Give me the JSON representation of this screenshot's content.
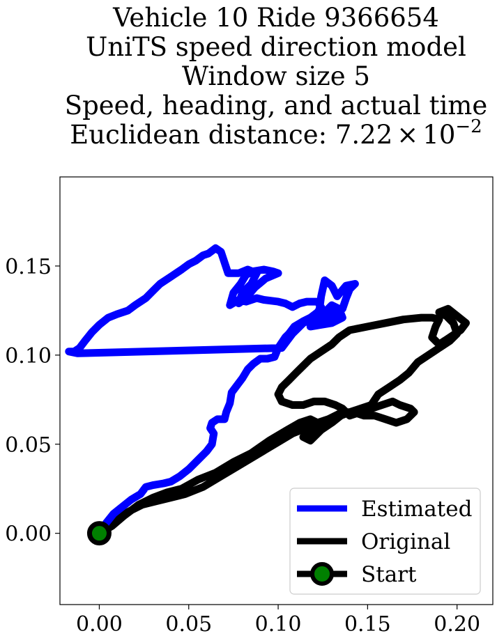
{
  "chart_data": {
    "type": "line",
    "title_lines": [
      "Vehicle 10 Ride 9366654",
      "UniTS speed direction model",
      "Window size 5",
      "Speed, heading, and actual time"
    ],
    "title_last_line": {
      "prefix": "Euclidean distance: ",
      "mantissa": "7.22",
      "times": "×",
      "base": "10",
      "exponent": "−2"
    },
    "xlim": [
      -0.022,
      0.22
    ],
    "ylim": [
      -0.04,
      0.2
    ],
    "xticks": [
      0.0,
      0.05,
      0.1,
      0.15,
      0.2
    ],
    "xtick_labels": [
      "0.00",
      "0.05",
      "0.10",
      "0.15",
      "0.20"
    ],
    "yticks": [
      0.0,
      0.05,
      0.1,
      0.15
    ],
    "ytick_labels": [
      "0.00",
      "0.05",
      "0.10",
      "0.15"
    ],
    "grid": false,
    "legend_position": "lower-right",
    "series": [
      {
        "name": "Estimated",
        "color": "#0000ff",
        "points": [
          [
            0.0,
            0.0
          ],
          [
            0.004,
            0.006
          ],
          [
            0.008,
            0.011
          ],
          [
            0.013,
            0.015
          ],
          [
            0.018,
            0.019
          ],
          [
            0.023,
            0.022
          ],
          [
            0.026,
            0.026
          ],
          [
            0.03,
            0.027
          ],
          [
            0.036,
            0.028
          ],
          [
            0.04,
            0.029
          ],
          [
            0.045,
            0.032
          ],
          [
            0.05,
            0.036
          ],
          [
            0.055,
            0.041
          ],
          [
            0.06,
            0.046
          ],
          [
            0.063,
            0.05
          ],
          [
            0.064,
            0.056
          ],
          [
            0.062,
            0.059
          ],
          [
            0.063,
            0.062
          ],
          [
            0.066,
            0.064
          ],
          [
            0.07,
            0.064
          ],
          [
            0.071,
            0.068
          ],
          [
            0.073,
            0.073
          ],
          [
            0.074,
            0.079
          ],
          [
            0.077,
            0.083
          ],
          [
            0.08,
            0.087
          ],
          [
            0.083,
            0.092
          ],
          [
            0.086,
            0.095
          ],
          [
            0.09,
            0.098
          ],
          [
            0.094,
            0.098
          ],
          [
            0.098,
            0.099
          ],
          [
            0.1,
            0.104
          ],
          [
            0.104,
            0.11
          ],
          [
            0.106,
            0.112
          ],
          [
            0.109,
            0.116
          ],
          [
            0.114,
            0.119
          ],
          [
            0.118,
            0.121
          ],
          [
            0.122,
            0.124
          ],
          [
            0.124,
            0.127
          ],
          [
            0.122,
            0.13
          ],
          [
            0.116,
            0.13
          ],
          [
            0.112,
            0.129
          ],
          [
            0.108,
            0.127
          ],
          [
            0.104,
            0.129
          ],
          [
            0.1,
            0.13
          ],
          [
            0.092,
            0.131
          ],
          [
            0.088,
            0.132
          ],
          [
            0.082,
            0.13
          ],
          [
            0.078,
            0.131
          ],
          [
            0.073,
            0.128
          ],
          [
            0.075,
            0.135
          ],
          [
            0.079,
            0.14
          ],
          [
            0.082,
            0.145
          ],
          [
            0.086,
            0.147
          ],
          [
            0.092,
            0.148
          ],
          [
            0.097,
            0.147
          ],
          [
            0.1,
            0.146
          ],
          [
            0.093,
            0.143
          ],
          [
            0.087,
            0.138
          ],
          [
            0.082,
            0.132
          ],
          [
            0.078,
            0.129
          ],
          [
            0.08,
            0.135
          ],
          [
            0.085,
            0.14
          ],
          [
            0.088,
            0.146
          ],
          [
            0.083,
            0.148
          ],
          [
            0.078,
            0.146
          ],
          [
            0.072,
            0.146
          ],
          [
            0.07,
            0.152
          ],
          [
            0.068,
            0.158
          ],
          [
            0.065,
            0.16
          ],
          [
            0.061,
            0.157
          ],
          [
            0.058,
            0.156
          ],
          [
            0.054,
            0.153
          ],
          [
            0.05,
            0.151
          ],
          [
            0.046,
            0.148
          ],
          [
            0.04,
            0.144
          ],
          [
            0.034,
            0.14
          ],
          [
            0.03,
            0.136
          ],
          [
            0.026,
            0.132
          ],
          [
            0.02,
            0.128
          ],
          [
            0.016,
            0.125
          ],
          [
            0.01,
            0.123
          ],
          [
            0.005,
            0.121
          ],
          [
            0.0,
            0.117
          ],
          [
            -0.004,
            0.113
          ],
          [
            -0.008,
            0.108
          ],
          [
            -0.011,
            0.104
          ],
          [
            -0.014,
            0.102
          ],
          [
            -0.017,
            0.102
          ],
          [
            -0.012,
            0.101
          ],
          [
            0.102,
            0.104
          ],
          [
            0.108,
            0.112
          ],
          [
            0.114,
            0.118
          ],
          [
            0.12,
            0.121
          ],
          [
            0.126,
            0.124
          ],
          [
            0.13,
            0.128
          ],
          [
            0.134,
            0.126
          ],
          [
            0.136,
            0.121
          ],
          [
            0.13,
            0.118
          ],
          [
            0.124,
            0.117
          ],
          [
            0.118,
            0.116
          ],
          [
            0.124,
            0.119
          ],
          [
            0.13,
            0.122
          ],
          [
            0.136,
            0.126
          ],
          [
            0.138,
            0.132
          ],
          [
            0.14,
            0.137
          ],
          [
            0.143,
            0.14
          ],
          [
            0.138,
            0.139
          ],
          [
            0.133,
            0.133
          ],
          [
            0.13,
            0.139
          ],
          [
            0.126,
            0.142
          ],
          [
            0.124,
            0.133
          ],
          [
            0.123,
            0.125
          ],
          [
            0.124,
            0.119
          ],
          [
            0.129,
            0.123
          ],
          [
            0.132,
            0.127
          ],
          [
            0.128,
            0.121
          ]
        ]
      },
      {
        "name": "Original",
        "color": "#000000",
        "points": [
          [
            0.0,
            0.0
          ],
          [
            0.007,
            0.004
          ],
          [
            0.014,
            0.01
          ],
          [
            0.022,
            0.016
          ],
          [
            0.03,
            0.02
          ],
          [
            0.038,
            0.023
          ],
          [
            0.046,
            0.025
          ],
          [
            0.055,
            0.03
          ],
          [
            0.065,
            0.034
          ],
          [
            0.075,
            0.04
          ],
          [
            0.085,
            0.045
          ],
          [
            0.095,
            0.052
          ],
          [
            0.105,
            0.058
          ],
          [
            0.112,
            0.062
          ],
          [
            0.118,
            0.064
          ],
          [
            0.124,
            0.061
          ],
          [
            0.118,
            0.058
          ],
          [
            0.114,
            0.054
          ],
          [
            0.118,
            0.052
          ],
          [
            0.124,
            0.058
          ],
          [
            0.13,
            0.062
          ],
          [
            0.135,
            0.066
          ],
          [
            0.14,
            0.068
          ],
          [
            0.146,
            0.07
          ],
          [
            0.152,
            0.072
          ],
          [
            0.156,
            0.078
          ],
          [
            0.162,
            0.082
          ],
          [
            0.168,
            0.086
          ],
          [
            0.173,
            0.09
          ],
          [
            0.178,
            0.096
          ],
          [
            0.184,
            0.1
          ],
          [
            0.19,
            0.104
          ],
          [
            0.196,
            0.108
          ],
          [
            0.2,
            0.112
          ],
          [
            0.198,
            0.118
          ],
          [
            0.194,
            0.122
          ],
          [
            0.19,
            0.124
          ],
          [
            0.195,
            0.126
          ],
          [
            0.2,
            0.122
          ],
          [
            0.205,
            0.118
          ],
          [
            0.202,
            0.114
          ],
          [
            0.196,
            0.11
          ],
          [
            0.19,
            0.106
          ],
          [
            0.186,
            0.11
          ],
          [
            0.188,
            0.116
          ],
          [
            0.19,
            0.12
          ],
          [
            0.186,
            0.121
          ],
          [
            0.18,
            0.121
          ],
          [
            0.17,
            0.12
          ],
          [
            0.16,
            0.118
          ],
          [
            0.15,
            0.116
          ],
          [
            0.14,
            0.114
          ],
          [
            0.134,
            0.11
          ],
          [
            0.13,
            0.106
          ],
          [
            0.124,
            0.102
          ],
          [
            0.118,
            0.098
          ],
          [
            0.114,
            0.094
          ],
          [
            0.11,
            0.09
          ],
          [
            0.106,
            0.086
          ],
          [
            0.102,
            0.082
          ],
          [
            0.1,
            0.078
          ],
          [
            0.102,
            0.074
          ],
          [
            0.108,
            0.072
          ],
          [
            0.114,
            0.072
          ],
          [
            0.12,
            0.074
          ],
          [
            0.126,
            0.074
          ],
          [
            0.132,
            0.072
          ],
          [
            0.136,
            0.07
          ],
          [
            0.14,
            0.066
          ],
          [
            0.146,
            0.068
          ],
          [
            0.152,
            0.07
          ],
          [
            0.158,
            0.072
          ],
          [
            0.164,
            0.074
          ],
          [
            0.168,
            0.072
          ],
          [
            0.174,
            0.07
          ],
          [
            0.176,
            0.068
          ],
          [
            0.172,
            0.064
          ],
          [
            0.166,
            0.062
          ],
          [
            0.16,
            0.064
          ],
          [
            0.154,
            0.066
          ],
          [
            0.148,
            0.066
          ],
          [
            0.142,
            0.068
          ],
          [
            0.136,
            0.068
          ],
          [
            0.128,
            0.064
          ],
          [
            0.122,
            0.062
          ],
          [
            0.118,
            0.06
          ],
          [
            0.108,
            0.056
          ],
          [
            0.098,
            0.05
          ],
          [
            0.088,
            0.044
          ],
          [
            0.078,
            0.038
          ],
          [
            0.068,
            0.032
          ],
          [
            0.058,
            0.026
          ],
          [
            0.048,
            0.022
          ],
          [
            0.04,
            0.02
          ],
          [
            0.032,
            0.018
          ],
          [
            0.024,
            0.016
          ],
          [
            0.016,
            0.012
          ],
          [
            0.008,
            0.006
          ],
          [
            0.0,
            0.0
          ]
        ]
      },
      {
        "name": "Start",
        "color": "#000000",
        "marker_face_color": "#008000",
        "points": [
          [
            0.0,
            0.0
          ]
        ]
      }
    ],
    "legend_entries": [
      "Estimated",
      "Original",
      "Start"
    ]
  }
}
